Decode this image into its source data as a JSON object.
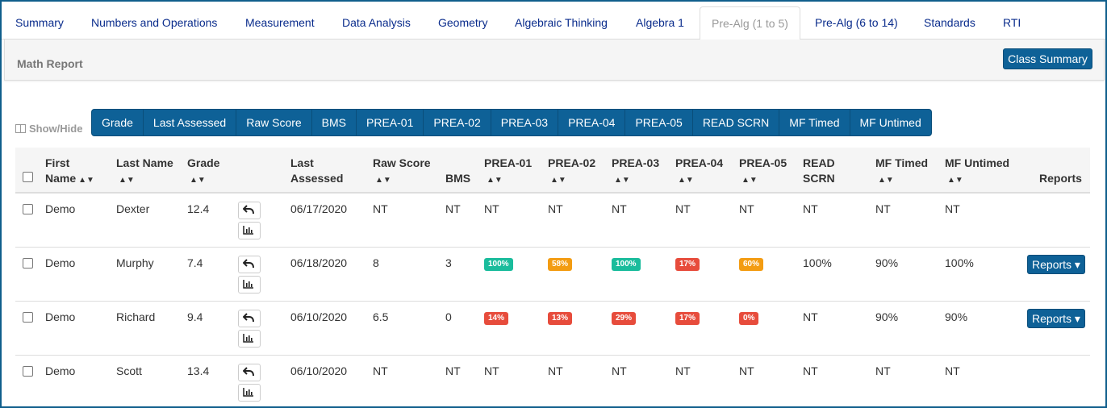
{
  "tabs": [
    {
      "label": "Summary",
      "active": false
    },
    {
      "label": "Numbers and Operations",
      "active": false
    },
    {
      "label": "Measurement",
      "active": false
    },
    {
      "label": "Data Analysis",
      "active": false
    },
    {
      "label": "Geometry",
      "active": false
    },
    {
      "label": "Algebraic Thinking",
      "active": false
    },
    {
      "label": "Algebra 1",
      "active": false
    },
    {
      "label": "Pre-Alg (1 to 5)",
      "active": true
    },
    {
      "label": "Pre-Alg (6 to 14)",
      "active": false
    },
    {
      "label": "Standards",
      "active": false
    },
    {
      "label": "RTI",
      "active": false
    }
  ],
  "panel": {
    "title": "Math Report",
    "class_summary_label": "Class Summary"
  },
  "show_hide": {
    "label": "Show/Hide",
    "columns": [
      "Grade",
      "Last Assessed",
      "Raw Score",
      "BMS",
      "PREA-01",
      "PREA-02",
      "PREA-03",
      "PREA-04",
      "PREA-05",
      "READ SCRN",
      "MF Timed",
      "MF Untimed"
    ]
  },
  "table": {
    "headers": {
      "first_name": [
        "First",
        "Name"
      ],
      "last_name": "Last Name",
      "grade": "Grade",
      "last_assessed": [
        "Last",
        "Assessed"
      ],
      "raw_score": "Raw Score",
      "bms": "BMS",
      "prea01": "PREA-01",
      "prea02": "PREA-02",
      "prea03": "PREA-03",
      "prea04": "PREA-04",
      "prea05": "PREA-05",
      "read_scrn": [
        "READ",
        "SCRN"
      ],
      "mf_timed": "MF Timed",
      "mf_untimed": "MF Untimed",
      "reports": "Reports"
    },
    "badge_colors": {
      "green": "#1abc9c",
      "orange": "#f39c12",
      "red": "#e74c3c"
    },
    "reports_label": "Reports",
    "rows": [
      {
        "first": "Demo",
        "last": "Dexter",
        "grade": "12.4",
        "assessed": "06/17/2020",
        "raw": "NT",
        "bms": "NT",
        "prea": [
          {
            "v": "NT"
          },
          {
            "v": "NT"
          },
          {
            "v": "NT"
          },
          {
            "v": "NT"
          },
          {
            "v": "NT"
          }
        ],
        "read": "NT",
        "mft": "NT",
        "mfu": "NT",
        "reports": false
      },
      {
        "first": "Demo",
        "last": "Murphy",
        "grade": "7.4",
        "assessed": "06/18/2020",
        "raw": "8",
        "bms": "3",
        "prea": [
          {
            "v": "100%",
            "c": "green"
          },
          {
            "v": "58%",
            "c": "orange"
          },
          {
            "v": "100%",
            "c": "green"
          },
          {
            "v": "17%",
            "c": "red"
          },
          {
            "v": "60%",
            "c": "orange"
          }
        ],
        "read": "100%",
        "mft": "90%",
        "mfu": "100%",
        "reports": true
      },
      {
        "first": "Demo",
        "last": "Richard",
        "grade": "9.4",
        "assessed": "06/10/2020",
        "raw": "6.5",
        "bms": "0",
        "prea": [
          {
            "v": "14%",
            "c": "red"
          },
          {
            "v": "13%",
            "c": "red"
          },
          {
            "v": "29%",
            "c": "red"
          },
          {
            "v": "17%",
            "c": "red"
          },
          {
            "v": "0%",
            "c": "red"
          }
        ],
        "read": "NT",
        "mft": "90%",
        "mfu": "90%",
        "reports": true
      },
      {
        "first": "Demo",
        "last": "Scott",
        "grade": "13.4",
        "assessed": "06/10/2020",
        "raw": "NT",
        "bms": "NT",
        "prea": [
          {
            "v": "NT"
          },
          {
            "v": "NT"
          },
          {
            "v": "NT"
          },
          {
            "v": "NT"
          },
          {
            "v": "NT"
          }
        ],
        "read": "NT",
        "mft": "NT",
        "mfu": "NT",
        "reports": false
      }
    ]
  }
}
